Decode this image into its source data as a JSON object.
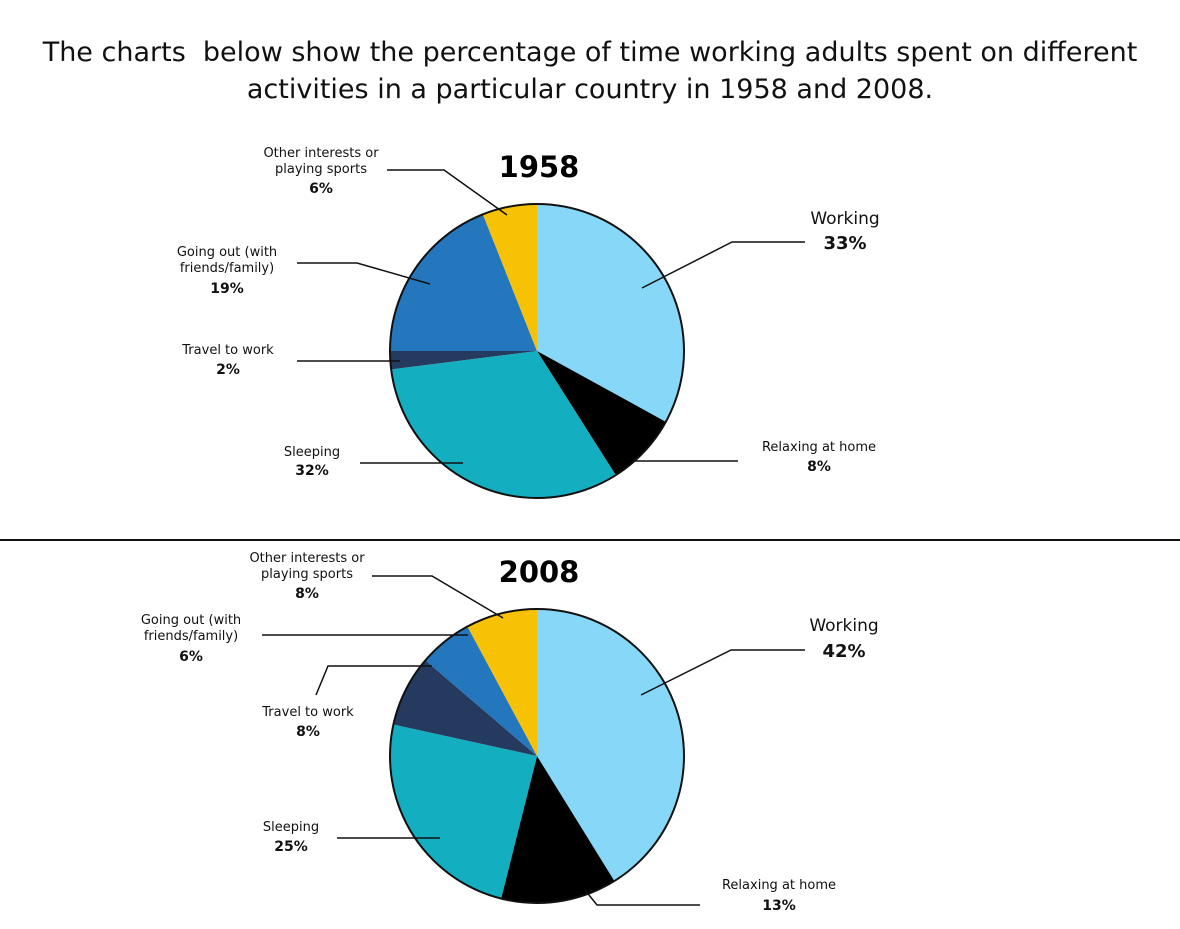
{
  "title": "The charts  below show the percentage of time working adults spent on different activities in a particular country in 1958 and 2008.",
  "chart_data": [
    {
      "type": "pie",
      "title": "1958",
      "categories": [
        "Working",
        "Relaxing at home",
        "Sleeping",
        "Travel to work",
        "Going out (with friends/family)",
        "Other interests or playing sports"
      ],
      "values": [
        33,
        8,
        32,
        2,
        19,
        6
      ],
      "value_labels": [
        "33%",
        "8%",
        "32%",
        "2%",
        "19%",
        "6%"
      ],
      "colors": [
        "#87d8f8",
        "#000000",
        "#13afc0",
        "#243a5e",
        "#2577bd",
        "#f7c204"
      ]
    },
    {
      "type": "pie",
      "title": "2008",
      "categories": [
        "Working",
        "Relaxing at home",
        "Sleeping",
        "Travel to work",
        "Going out (with friends/family)",
        "Other interests or playing sports"
      ],
      "values": [
        42,
        13,
        25,
        8,
        6,
        8
      ],
      "value_labels": [
        "42%",
        "13%",
        "25%",
        "8%",
        "6%",
        "8%"
      ],
      "colors": [
        "#87d8f8",
        "#000000",
        "#13afc0",
        "#243a5e",
        "#2577bd",
        "#f7c204"
      ]
    }
  ]
}
